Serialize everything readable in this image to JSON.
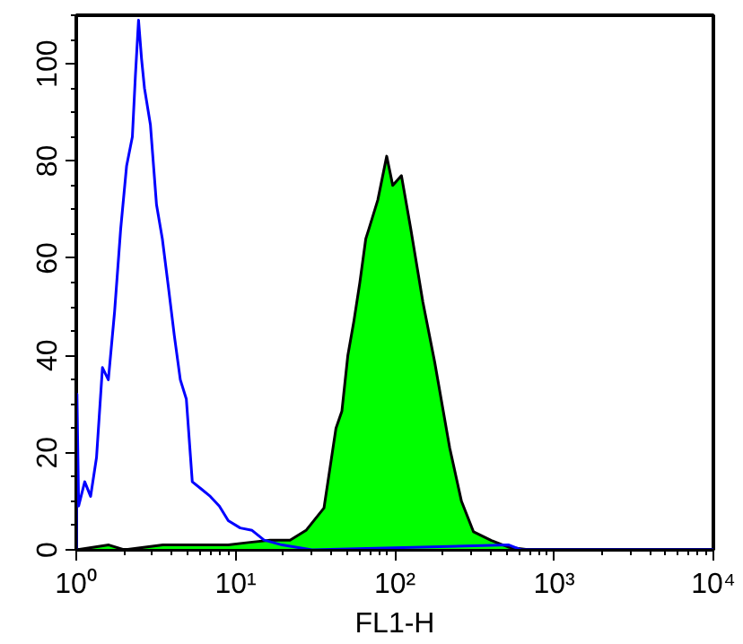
{
  "chart_data": {
    "type": "line",
    "xlabel": "FL1-H",
    "log": "x",
    "grid": false,
    "xlim": [
      1,
      10000
    ],
    "ylim": [
      0,
      110
    ],
    "xticks": [
      {
        "value": 1,
        "label": "10⁰"
      },
      {
        "value": 10,
        "label": "10¹"
      },
      {
        "value": 100,
        "label": "10²"
      },
      {
        "value": 1000,
        "label": "10³"
      },
      {
        "value": 10000,
        "label": "10⁴"
      }
    ],
    "yticks": [
      0,
      20,
      40,
      60,
      80,
      100
    ],
    "series": [
      {
        "type": "area",
        "color": "#00ff00",
        "x": [
          1,
          1.6,
          2,
          3.5,
          5,
          9,
          12,
          16.5,
          22,
          27.7,
          35.9,
          42.7,
          46.5,
          50.7,
          55.3,
          60.3,
          65.7,
          68.7,
          78.2,
          88.9,
          97,
          110,
          126,
          150,
          178,
          221,
          262,
          312,
          404,
          524,
          700,
          10000
        ],
        "values": [
          0,
          1,
          0,
          1,
          1,
          1,
          1.5,
          2,
          2,
          4,
          8.6,
          25,
          28.5,
          40,
          47,
          55,
          64,
          66,
          72,
          81,
          75,
          77,
          66,
          51,
          38.6,
          21,
          10,
          3.7,
          1.9,
          0.5,
          0,
          0
        ]
      },
      {
        "color": "#0000ff",
        "x": [
          1,
          1.01,
          1.035,
          1.13,
          1.23,
          1.34,
          1.46,
          1.59,
          1.74,
          1.9,
          2.07,
          2.25,
          2.35,
          2.46,
          2.57,
          2.68,
          2.92,
          3.19,
          3.47,
          3.79,
          4.13,
          4.5,
          4.91,
          5.35,
          6.1,
          6.94,
          7.91,
          9,
          10.7,
          12.7,
          15.1,
          19.6,
          30.2,
          520,
          620,
          10000
        ],
        "values": [
          0,
          32,
          9,
          14,
          11,
          19,
          37.5,
          35,
          49,
          66,
          79,
          85,
          97.5,
          109,
          101,
          95,
          87.5,
          71,
          64,
          54,
          44,
          35,
          31,
          14,
          12.5,
          11,
          9,
          6,
          4.5,
          4,
          2,
          1,
          0,
          1,
          0,
          0
        ]
      }
    ]
  }
}
